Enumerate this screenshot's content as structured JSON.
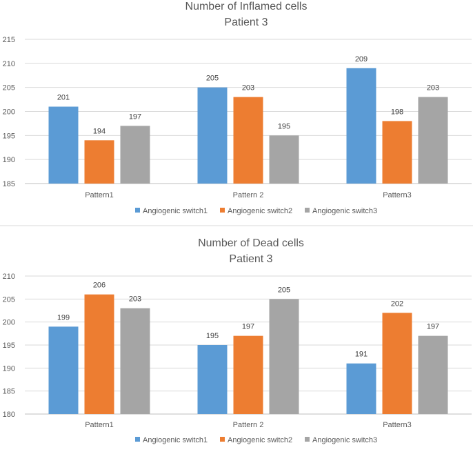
{
  "chart_data": [
    {
      "type": "bar",
      "title": "Number of Inflamed cells",
      "subtitle": "Patient 3",
      "categories": [
        "Pattern1",
        "Pattern 2",
        "Pattern3"
      ],
      "series": [
        {
          "name": "Angiogenic switch1",
          "color": "#5b9bd5",
          "values": [
            201,
            205,
            209
          ]
        },
        {
          "name": "Angiogenic switch2",
          "color": "#ed7d31",
          "values": [
            194,
            203,
            198
          ]
        },
        {
          "name": "Angiogenic switch3",
          "color": "#a5a5a5",
          "values": [
            197,
            195,
            203
          ]
        }
      ],
      "ylim": [
        185,
        215
      ],
      "yticks": [
        185,
        190,
        195,
        200,
        205,
        210,
        215
      ],
      "grid": true,
      "legend": "bottom"
    },
    {
      "type": "bar",
      "title": "Number of Dead cells",
      "subtitle": "Patient 3",
      "categories": [
        "Pattern1",
        "Pattern 2",
        "Pattern3"
      ],
      "series": [
        {
          "name": "Angiogenic switch1",
          "color": "#5b9bd5",
          "values": [
            199,
            195,
            191
          ]
        },
        {
          "name": "Angiogenic switch2",
          "color": "#ed7d31",
          "values": [
            206,
            197,
            202
          ]
        },
        {
          "name": "Angiogenic switch3",
          "color": "#a5a5a5",
          "values": [
            203,
            205,
            197
          ]
        }
      ],
      "ylim": [
        180,
        210
      ],
      "yticks": [
        180,
        185,
        190,
        195,
        200,
        205,
        210
      ],
      "grid": true,
      "legend": "bottom"
    }
  ]
}
